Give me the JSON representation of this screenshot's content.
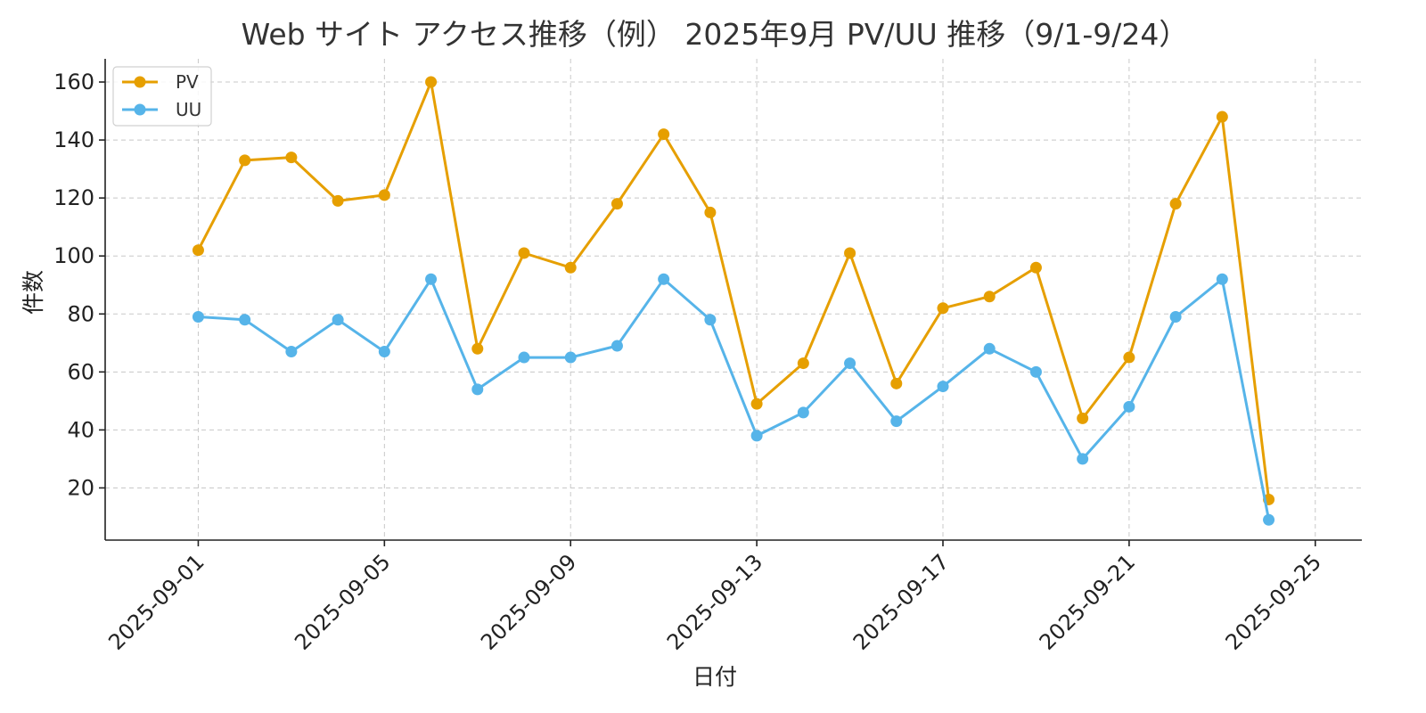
{
  "chart_data": {
    "type": "line",
    "title": "Web サイト アクセス推移（例） 2025年9月 PV/UU 推移（9/1-9/24）",
    "xlabel": "日付",
    "ylabel": "件数",
    "x": [
      "2025-09-01",
      "2025-09-02",
      "2025-09-03",
      "2025-09-04",
      "2025-09-05",
      "2025-09-06",
      "2025-09-07",
      "2025-09-08",
      "2025-09-09",
      "2025-09-10",
      "2025-09-11",
      "2025-09-12",
      "2025-09-13",
      "2025-09-14",
      "2025-09-15",
      "2025-09-16",
      "2025-09-17",
      "2025-09-18",
      "2025-09-19",
      "2025-09-20",
      "2025-09-21",
      "2025-09-22",
      "2025-09-23",
      "2025-09-24"
    ],
    "series": [
      {
        "name": "PV",
        "color": "#E69F00",
        "values": [
          102,
          133,
          134,
          119,
          121,
          160,
          68,
          101,
          96,
          118,
          142,
          115,
          49,
          63,
          101,
          56,
          82,
          86,
          96,
          44,
          65,
          118,
          148,
          16
        ]
      },
      {
        "name": "UU",
        "color": "#56B4E9",
        "values": [
          79,
          78,
          67,
          78,
          67,
          92,
          54,
          65,
          65,
          69,
          92,
          78,
          38,
          46,
          63,
          43,
          55,
          68,
          60,
          30,
          48,
          79,
          92,
          9
        ]
      }
    ],
    "xticks": [
      "2025-09-01",
      "2025-09-05",
      "2025-09-09",
      "2025-09-13",
      "2025-09-17",
      "2025-09-21",
      "2025-09-25"
    ],
    "yticks": [
      20,
      40,
      60,
      80,
      100,
      120,
      140,
      160
    ],
    "xlim": [
      "2025-08-30",
      "2025-09-26"
    ],
    "ylim": [
      2,
      168
    ],
    "grid": true,
    "legend_position": "top-left"
  }
}
